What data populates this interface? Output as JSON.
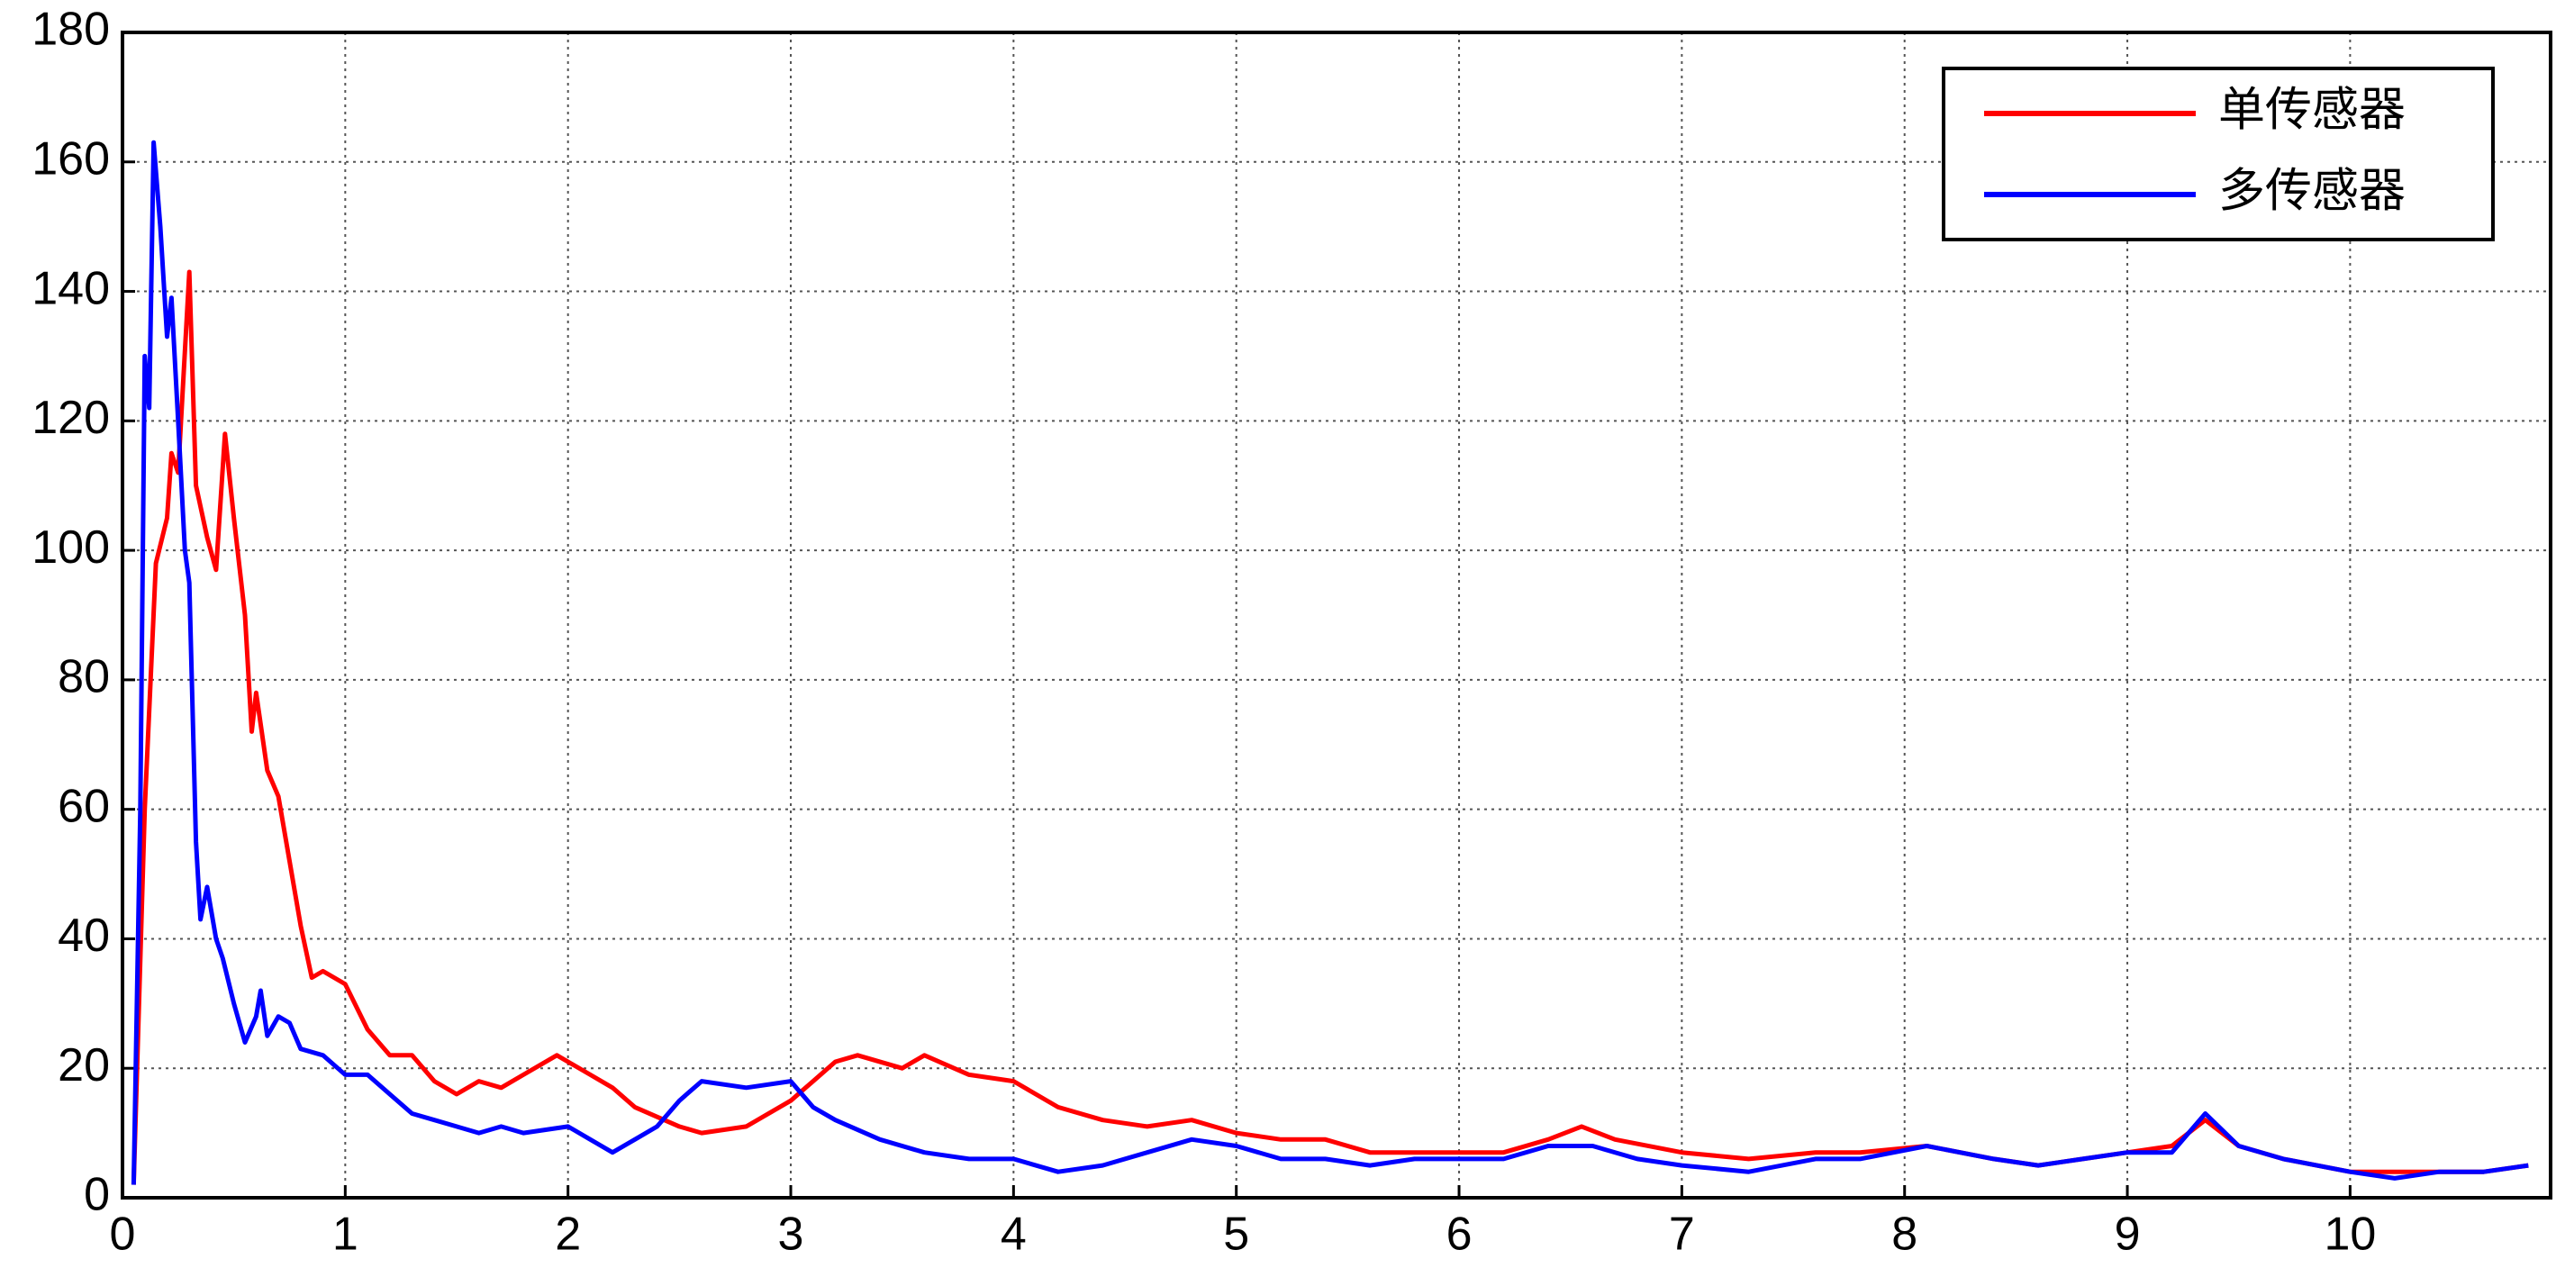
{
  "chart_data": {
    "type": "line",
    "xlim": [
      0,
      10.9
    ],
    "ylim": [
      0,
      180
    ],
    "xticks": [
      0,
      1,
      2,
      3,
      4,
      5,
      6,
      7,
      8,
      9,
      10
    ],
    "yticks": [
      0,
      20,
      40,
      60,
      80,
      100,
      120,
      140,
      160,
      180
    ],
    "grid": true,
    "legend": "top-right",
    "series": [
      {
        "name": "单传感器",
        "color": "#ff0000",
        "x": [
          0.05,
          0.1,
          0.15,
          0.2,
          0.22,
          0.25,
          0.3,
          0.33,
          0.38,
          0.42,
          0.46,
          0.5,
          0.55,
          0.58,
          0.6,
          0.65,
          0.7,
          0.75,
          0.8,
          0.85,
          0.9,
          1.0,
          1.1,
          1.2,
          1.3,
          1.4,
          1.5,
          1.6,
          1.7,
          1.8,
          1.95,
          2.1,
          2.2,
          2.3,
          2.5,
          2.6,
          2.8,
          3.0,
          3.1,
          3.2,
          3.3,
          3.5,
          3.6,
          3.8,
          4.0,
          4.2,
          4.4,
          4.6,
          4.8,
          5.0,
          5.2,
          5.4,
          5.6,
          5.8,
          6.0,
          6.2,
          6.4,
          6.55,
          6.7,
          7.0,
          7.3,
          7.6,
          7.8,
          8.1,
          8.4,
          8.6,
          8.8,
          9.0,
          9.2,
          9.35,
          9.5,
          9.7,
          10.0,
          10.2,
          10.4,
          10.6,
          10.8
        ],
        "values": [
          2,
          60,
          98,
          105,
          115,
          112,
          143,
          110,
          102,
          97,
          118,
          105,
          90,
          72,
          78,
          66,
          62,
          52,
          42,
          34,
          35,
          33,
          26,
          22,
          22,
          18,
          16,
          18,
          17,
          19,
          22,
          19,
          17,
          14,
          11,
          10,
          11,
          15,
          18,
          21,
          22,
          20,
          22,
          19,
          18,
          14,
          12,
          11,
          12,
          10,
          9,
          9,
          7,
          7,
          7,
          7,
          9,
          11,
          9,
          7,
          6,
          7,
          7,
          8,
          6,
          5,
          6,
          7,
          8,
          12,
          8,
          6,
          4,
          4,
          4,
          4,
          5
        ]
      },
      {
        "name": "多传感器",
        "color": "#0000ff",
        "x": [
          0.05,
          0.08,
          0.1,
          0.12,
          0.14,
          0.17,
          0.2,
          0.22,
          0.25,
          0.28,
          0.3,
          0.33,
          0.35,
          0.38,
          0.42,
          0.45,
          0.5,
          0.55,
          0.6,
          0.62,
          0.65,
          0.7,
          0.75,
          0.8,
          0.9,
          1.0,
          1.1,
          1.2,
          1.3,
          1.4,
          1.5,
          1.6,
          1.7,
          1.8,
          2.0,
          2.1,
          2.2,
          2.3,
          2.4,
          2.5,
          2.6,
          2.8,
          3.0,
          3.1,
          3.2,
          3.4,
          3.6,
          3.8,
          4.0,
          4.2,
          4.4,
          4.6,
          4.8,
          5.0,
          5.2,
          5.4,
          5.6,
          5.8,
          6.0,
          6.2,
          6.4,
          6.6,
          6.8,
          7.0,
          7.3,
          7.6,
          7.8,
          8.1,
          8.4,
          8.6,
          8.8,
          9.0,
          9.2,
          9.35,
          9.5,
          9.7,
          10.0,
          10.2,
          10.4,
          10.6,
          10.8
        ],
        "values": [
          2,
          60,
          130,
          122,
          163,
          150,
          133,
          139,
          120,
          100,
          95,
          55,
          43,
          48,
          40,
          37,
          30,
          24,
          28,
          32,
          25,
          28,
          27,
          23,
          22,
          19,
          19,
          16,
          13,
          12,
          11,
          10,
          11,
          10,
          11,
          9,
          7,
          9,
          11,
          15,
          18,
          17,
          18,
          14,
          12,
          9,
          7,
          6,
          6,
          4,
          5,
          7,
          9,
          8,
          6,
          6,
          5,
          6,
          6,
          6,
          8,
          8,
          6,
          5,
          4,
          6,
          6,
          8,
          6,
          5,
          6,
          7,
          7,
          13,
          8,
          6,
          4,
          3,
          4,
          4,
          5
        ]
      }
    ]
  }
}
